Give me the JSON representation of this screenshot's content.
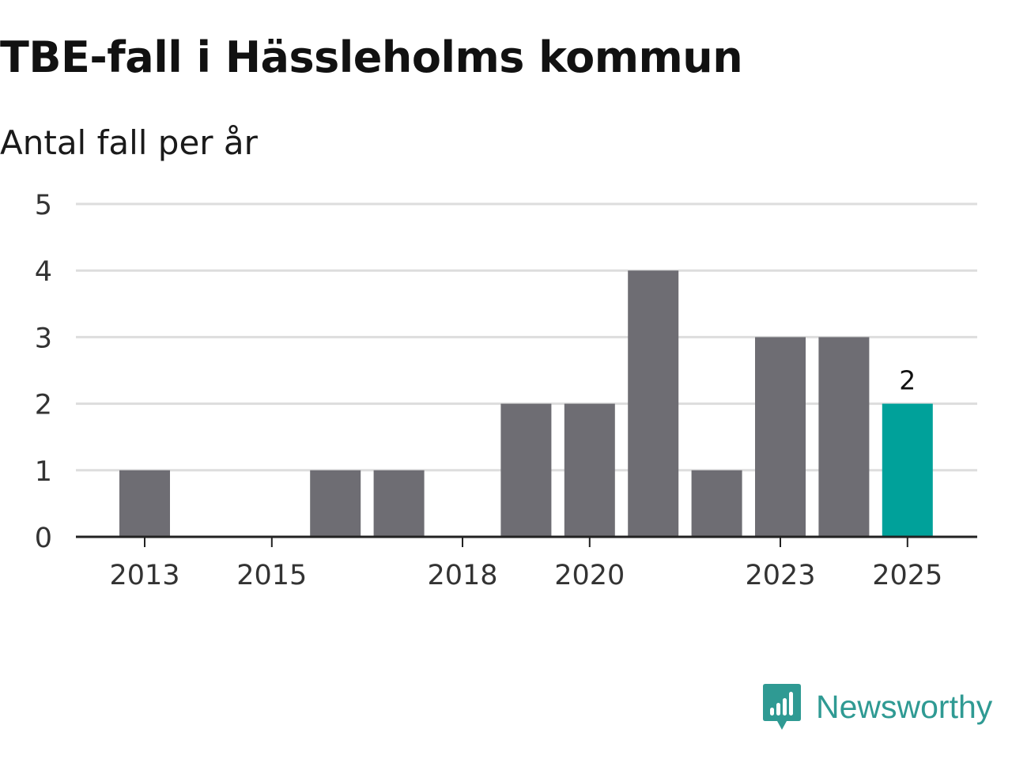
{
  "chart_data": {
    "type": "bar",
    "title": "TBE-fall i Hässleholms kommun",
    "subtitle": "Antal fall per år",
    "categories": [
      "2013",
      "2014",
      "2015",
      "2016",
      "2017",
      "2018",
      "2019",
      "2020",
      "2021",
      "2022",
      "2023",
      "2024",
      "2025"
    ],
    "values": [
      1,
      0,
      0,
      1,
      1,
      0,
      2,
      2,
      4,
      1,
      3,
      3,
      2
    ],
    "x_tick_labels": [
      "2013",
      "2015",
      "2018",
      "2020",
      "2023",
      "2025"
    ],
    "y_ticks": [
      0,
      1,
      2,
      3,
      4,
      5
    ],
    "ylim": [
      0,
      5
    ],
    "xlabel": "",
    "ylabel": "",
    "grid": true,
    "highlight": {
      "category": "2025",
      "value_label": "2"
    },
    "colors": {
      "bar": "#6e6d73",
      "highlight": "#00a19a",
      "grid": "#dddddd",
      "axis": "#222222"
    }
  },
  "brand": {
    "name": "Newsworthy",
    "color": "#2f9a93",
    "icon": "newsworthy-logo-icon"
  }
}
